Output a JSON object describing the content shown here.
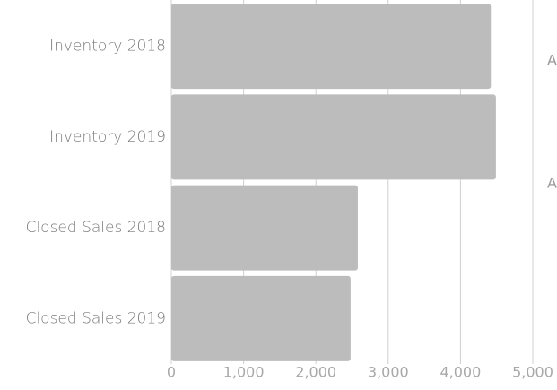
{
  "chart_data": {
    "type": "bar",
    "orientation": "horizontal",
    "categories": [
      "Inventory 2018",
      "Inventory 2019",
      "Closed Sales 2018",
      "Closed Sales 2019"
    ],
    "values": [
      4420,
      4490,
      2580,
      2480
    ],
    "color": "#bbbcbb",
    "xlim": [
      0,
      5000
    ],
    "xticks": [
      0,
      {
        "value": 1000,
        "label": "1,000"
      },
      {
        "value": 2000,
        "label": "2,000"
      },
      {
        "value": 3000,
        "label": "3,000"
      },
      {
        "value": 4000,
        "label": "4,000"
      },
      {
        "value": 5000,
        "label": "5,000"
      }
    ],
    "grid": true,
    "annotations": [
      "A",
      "A"
    ]
  }
}
